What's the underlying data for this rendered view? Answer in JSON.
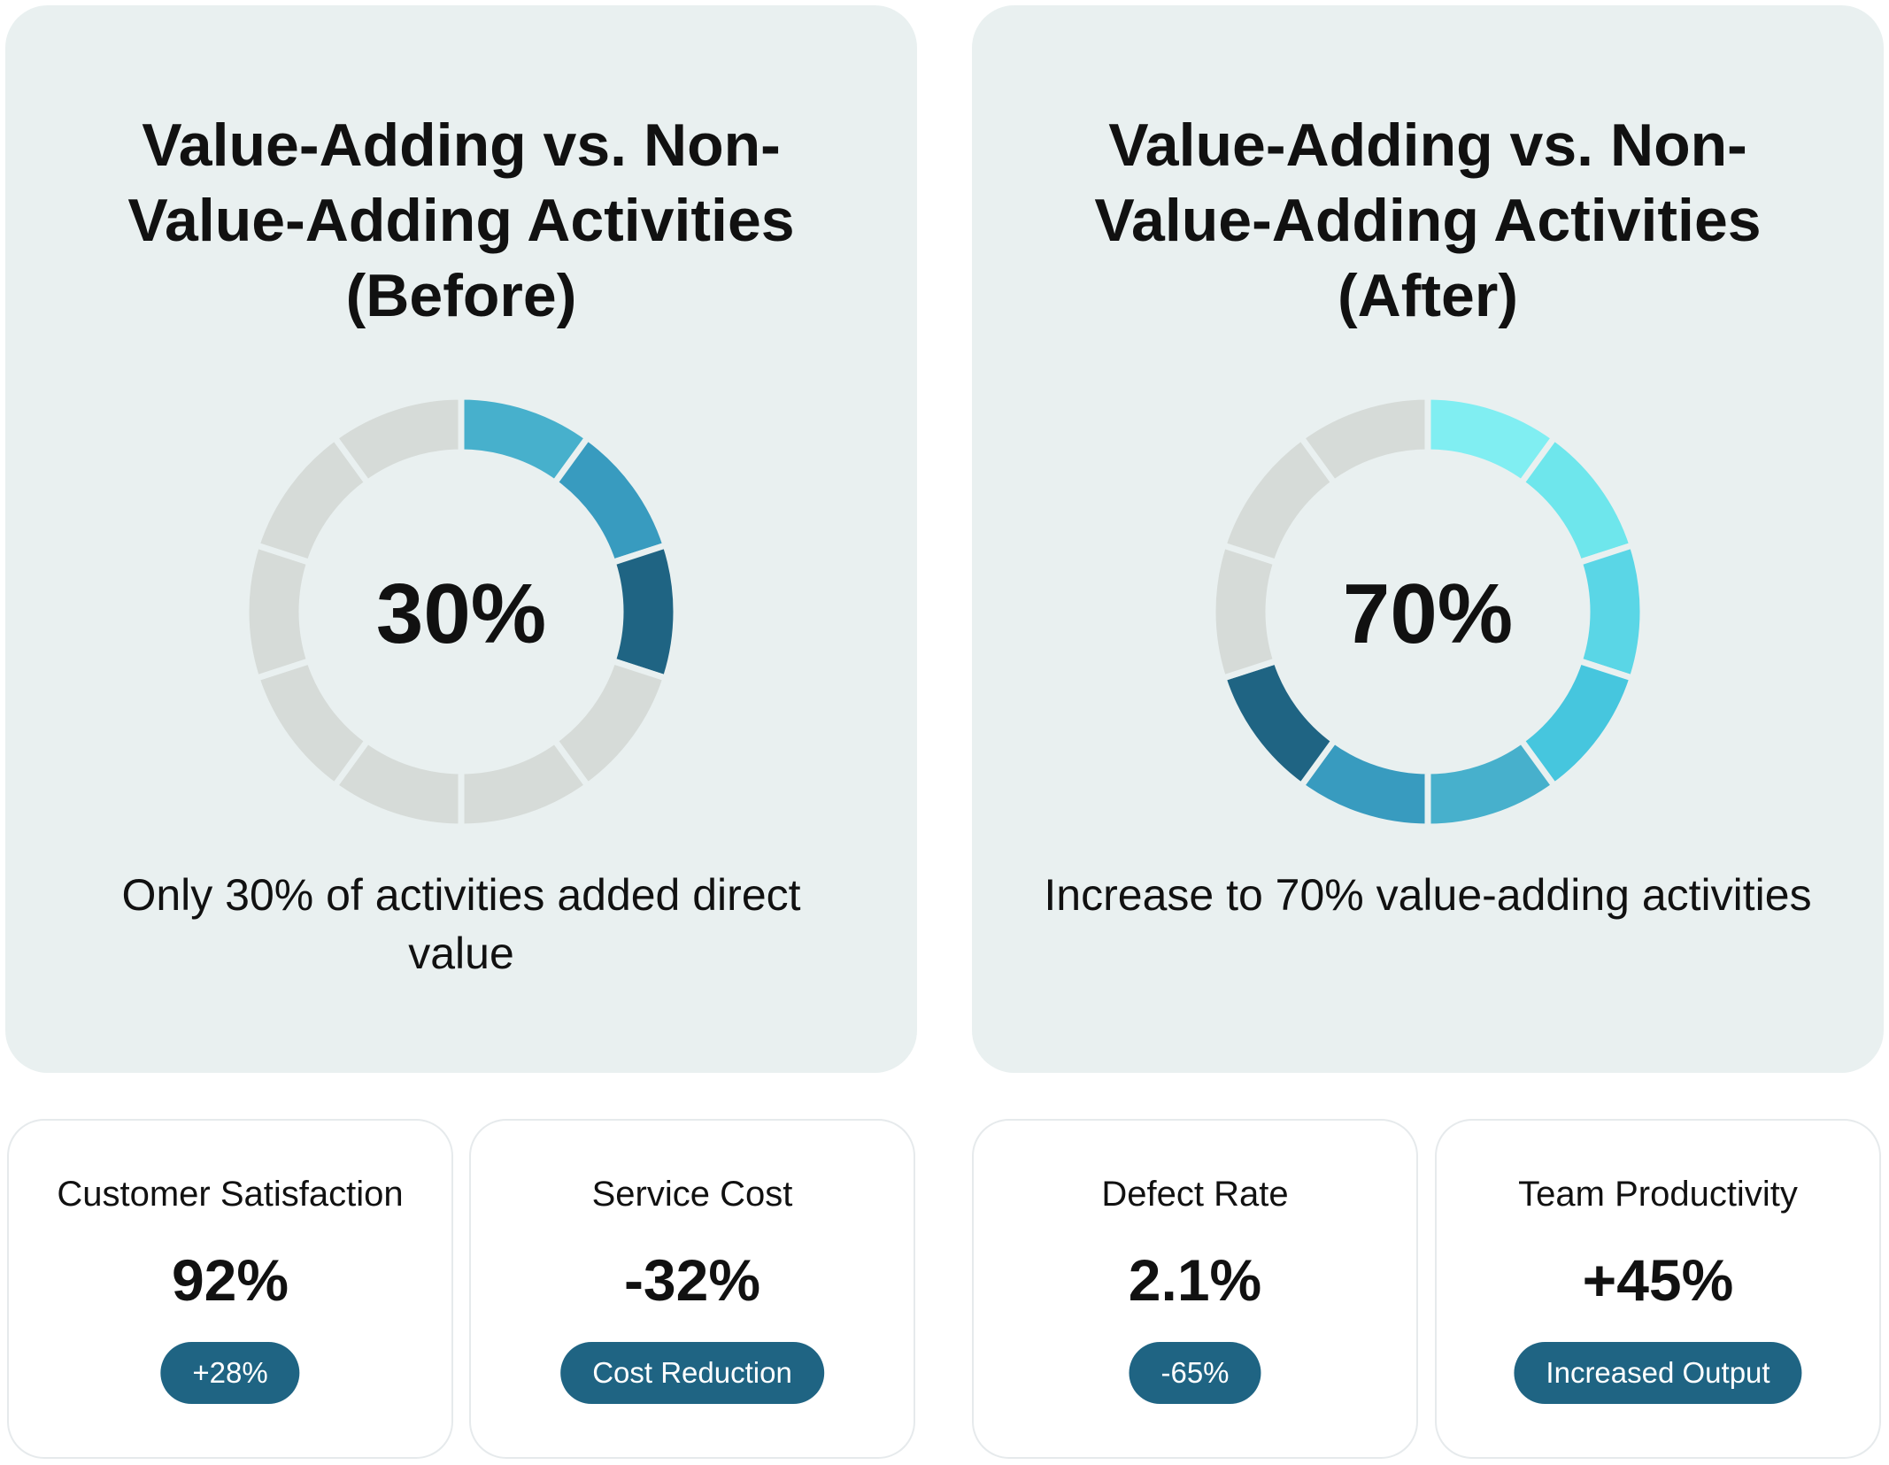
{
  "chart_data": [
    {
      "type": "pie",
      "title": "Value-Adding vs. Non-Value-Adding Activities (Before)",
      "center_label": "30%",
      "caption": "Only 30% of activities added direct value",
      "value_adding_percent": 30,
      "segments_total": 10,
      "segments_filled": 3,
      "segment_colors": [
        "#47b0cc",
        "#389bbf",
        "#1f6483",
        "#d6dbd8",
        "#d6dbd8",
        "#d6dbd8",
        "#d6dbd8",
        "#d6dbd8",
        "#d6dbd8",
        "#d6dbd8"
      ]
    },
    {
      "type": "pie",
      "title": "Value-Adding vs. Non-Value-Adding Activities (After)",
      "center_label": "70%",
      "caption": "Increase to 70% value-adding activities",
      "value_adding_percent": 70,
      "segments_total": 10,
      "segments_filled": 7,
      "segment_colors": [
        "#80eef2",
        "#6ee6ec",
        "#5ad6e6",
        "#46c6de",
        "#47b0cc",
        "#389bbf",
        "#1f6483",
        "#d6dbd8",
        "#d6dbd8",
        "#d6dbd8"
      ]
    }
  ],
  "metrics": [
    {
      "label": "Customer Satisfaction",
      "value": "92%",
      "badge": "+28%"
    },
    {
      "label": "Service Cost",
      "value": "-32%",
      "badge": "Cost Reduction"
    },
    {
      "label": "Defect Rate",
      "value": "2.1%",
      "badge": "-65%"
    },
    {
      "label": "Team Productivity",
      "value": "+45%",
      "badge": "Increased Output"
    }
  ],
  "colors": {
    "panel_background": "#e9f0f0",
    "badge_background": "#1f6483",
    "unfilled_segment": "#d6dbd8"
  }
}
